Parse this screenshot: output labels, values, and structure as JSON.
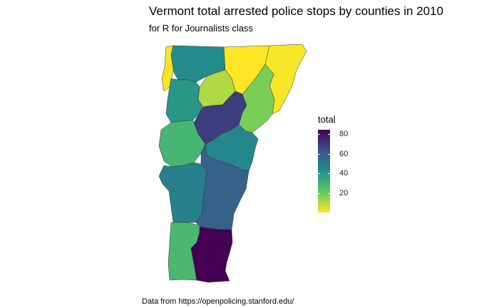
{
  "title": "Vermont total arrested police stops by counties in 2010",
  "subtitle": "for R for Journalists class",
  "caption": "Data from https://openpolicing.stanford.edu/",
  "legend": {
    "title": "total",
    "min": 1,
    "max": 84,
    "ticks": [
      {
        "value": 80,
        "label": "80"
      },
      {
        "value": 60,
        "label": "60"
      },
      {
        "value": 40,
        "label": "40"
      },
      {
        "value": 20,
        "label": "20"
      }
    ],
    "colors": [
      "#440154",
      "#3B528B",
      "#21908C",
      "#5DC863",
      "#FDE725"
    ]
  },
  "chart_data": {
    "type": "choropleth",
    "region": "Vermont counties",
    "variable": "total",
    "scale": "viridis",
    "counties": [
      {
        "id": "grand-isle",
        "total": 2
      },
      {
        "id": "franklin",
        "total": 44
      },
      {
        "id": "orleans",
        "total": 1
      },
      {
        "id": "essex",
        "total": 2
      },
      {
        "id": "lamoille",
        "total": 11
      },
      {
        "id": "chittenden",
        "total": 40
      },
      {
        "id": "caledonia",
        "total": 18
      },
      {
        "id": "washington",
        "total": 69
      },
      {
        "id": "addison",
        "total": 29
      },
      {
        "id": "orange",
        "total": 46
      },
      {
        "id": "rutland",
        "total": 48
      },
      {
        "id": "windsor",
        "total": 58
      },
      {
        "id": "bennington",
        "total": 28
      },
      {
        "id": "windham",
        "total": 84
      }
    ]
  }
}
